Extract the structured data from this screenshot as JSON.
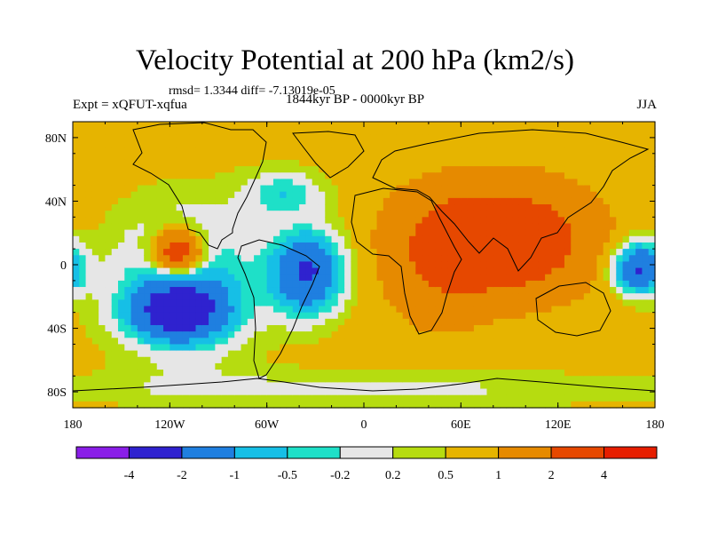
{
  "header": {
    "title": "Velocity Potential at 200 hPa (km2/s)",
    "stats": "rmsd= 1.3344 diff= -7.13019e-05",
    "experiment": "Expt = xQFUT-xqfua",
    "period": "1844kyr BP - 0000kyr BP",
    "season": "JJA"
  },
  "chart_data": {
    "type": "heatmap",
    "title": "Velocity Potential at 200 hPa (km2/s)",
    "xlabel": "",
    "ylabel": "",
    "xlim": [
      -180,
      180
    ],
    "ylim": [
      -90,
      90
    ],
    "x_ticks": [
      {
        "value": -180,
        "label": "180"
      },
      {
        "value": -120,
        "label": "120W"
      },
      {
        "value": -60,
        "label": "60W"
      },
      {
        "value": 0,
        "label": "0"
      },
      {
        "value": 60,
        "label": "60E"
      },
      {
        "value": 120,
        "label": "120E"
      },
      {
        "value": 180,
        "label": "180"
      }
    ],
    "y_ticks": [
      {
        "value": 80,
        "label": "80N"
      },
      {
        "value": 40,
        "label": "40N"
      },
      {
        "value": 0,
        "label": "0"
      },
      {
        "value": -40,
        "label": "40S"
      },
      {
        "value": -80,
        "label": "80S"
      }
    ],
    "colorbar": {
      "levels": [
        -4,
        -2,
        -1,
        -0.5,
        -0.2,
        0.2,
        0.5,
        1,
        2,
        4
      ],
      "level_labels": [
        "-4",
        "-2",
        "-1",
        "-0.5",
        "-0.2",
        "0.2",
        "0.5",
        "1",
        "2",
        "4"
      ],
      "colors": [
        "#8a1ee8",
        "#2f22cf",
        "#1f7fe0",
        "#16bfe6",
        "#1ee0c8",
        "#e6e6e6",
        "#b6dc10",
        "#e6b400",
        "#e68a00",
        "#e64800",
        "#e61e00"
      ]
    },
    "field": {
      "background_value": 0.7,
      "features": [
        {
          "name": "south-asia-max",
          "lon": 85,
          "lat": 15,
          "amp": 2.8,
          "lon_scale": 50,
          "lat_scale": 32
        },
        {
          "name": "africa-ridge",
          "lon": 45,
          "lat": 0,
          "amp": 0.8,
          "lon_scale": 30,
          "lat_scale": 40
        },
        {
          "name": "east-pacific-max",
          "lon": -115,
          "lat": 8,
          "amp": 3.2,
          "lon_scale": 16,
          "lat_scale": 14
        },
        {
          "name": "atlantic-min",
          "lon": -35,
          "lat": -5,
          "amp": -2.8,
          "lon_scale": 22,
          "lat_scale": 26
        },
        {
          "name": "south-pacific-min",
          "lon": -115,
          "lat": -30,
          "amp": -2.6,
          "lon_scale": 30,
          "lat_scale": 18
        },
        {
          "name": "pacific-trough",
          "lon": -110,
          "lat": -10,
          "amp": -1.6,
          "lon_scale": 45,
          "lat_scale": 45
        },
        {
          "name": "west-pacific-min",
          "lon": 170,
          "lat": -2,
          "amp": -2.8,
          "lon_scale": 16,
          "lat_scale": 16
        },
        {
          "name": "north-atlantic-trough",
          "lon": -50,
          "lat": 45,
          "amp": -1.1,
          "lon_scale": 25,
          "lat_scale": 15
        },
        {
          "name": "southern-ocean-low",
          "lon": 0,
          "lat": -78,
          "amp": -0.6,
          "lon_scale": 200,
          "lat_scale": 12
        }
      ]
    }
  }
}
